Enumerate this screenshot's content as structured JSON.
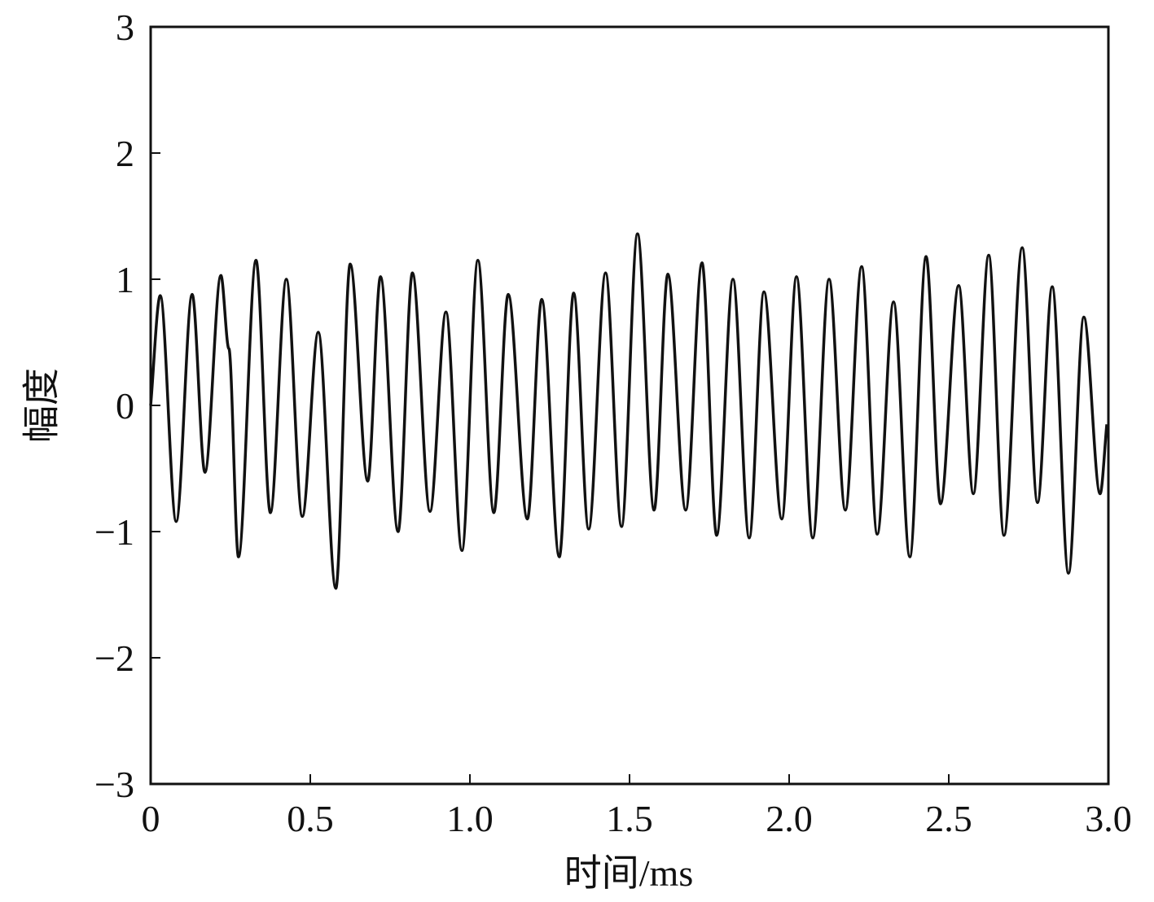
{
  "chart_data": {
    "type": "line",
    "x_label": "时间/ms",
    "y_label": "幅度",
    "xlim": [
      0,
      3
    ],
    "ylim": [
      -3,
      3
    ],
    "xticks": [
      0,
      0.5,
      {
        "value": 1,
        "label": "1.0"
      },
      1.5,
      {
        "value": 2,
        "label": "2.0"
      },
      2.5,
      {
        "value": 3,
        "label": "3.0"
      }
    ],
    "yticks": [
      {
        "value": -3,
        "label": "−3"
      },
      {
        "value": -2,
        "label": "−2"
      },
      {
        "value": -1,
        "label": "−1"
      },
      0,
      1,
      2,
      3
    ],
    "color": "#111111",
    "x": [
      0,
      0.03,
      0.08,
      0.13,
      0.17,
      0.22,
      0.245,
      0.275,
      0.33,
      0.375,
      0.425,
      0.475,
      0.525,
      0.58,
      0.625,
      0.68,
      0.72,
      0.775,
      0.82,
      0.875,
      0.925,
      0.975,
      1.025,
      1.075,
      1.12,
      1.18,
      1.225,
      1.28,
      1.325,
      1.372,
      1.425,
      1.475,
      1.525,
      1.577,
      1.62,
      1.676,
      1.727,
      1.773,
      1.824,
      1.875,
      1.921,
      1.977,
      2.023,
      2.074,
      2.125,
      2.176,
      2.227,
      2.276,
      2.327,
      2.378,
      2.429,
      2.474,
      2.531,
      2.577,
      2.625,
      2.673,
      2.73,
      2.778,
      2.824,
      2.875,
      2.923,
      2.974,
      2.995
    ],
    "values": [
      0,
      0.87,
      -0.92,
      0.88,
      -0.53,
      1.03,
      0.45,
      -1.2,
      1.15,
      -0.85,
      1.0,
      -0.88,
      0.58,
      -1.45,
      1.12,
      -0.6,
      1.02,
      -1.0,
      1.05,
      -0.84,
      0.74,
      -1.15,
      1.15,
      -0.85,
      0.88,
      -0.9,
      0.84,
      -1.2,
      0.89,
      -0.98,
      1.05,
      -0.96,
      1.36,
      -0.83,
      1.04,
      -0.83,
      1.13,
      -1.03,
      1.0,
      -1.05,
      0.9,
      -0.9,
      1.02,
      -1.05,
      1.0,
      -0.83,
      1.1,
      -1.02,
      0.82,
      -1.2,
      1.18,
      -0.78,
      0.95,
      -0.7,
      1.19,
      -1.03,
      1.25,
      -0.77,
      0.94,
      -1.33,
      0.7,
      -0.7,
      -0.15
    ]
  }
}
